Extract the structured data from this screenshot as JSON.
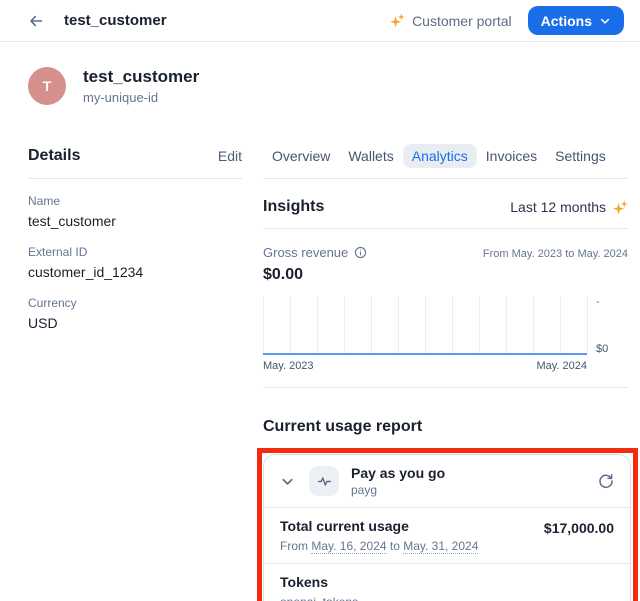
{
  "header": {
    "title": "test_customer",
    "portal_label": "Customer portal",
    "actions_label": "Actions"
  },
  "profile": {
    "initial": "T",
    "name": "test_customer",
    "subtitle": "my-unique-id"
  },
  "details": {
    "heading": "Details",
    "edit_label": "Edit",
    "fields": [
      {
        "label": "Name",
        "value": "test_customer"
      },
      {
        "label": "External ID",
        "value": "customer_id_1234"
      },
      {
        "label": "Currency",
        "value": "USD"
      }
    ]
  },
  "tabs": [
    {
      "label": "Overview",
      "active": false
    },
    {
      "label": "Wallets",
      "active": false
    },
    {
      "label": "Analytics",
      "active": true
    },
    {
      "label": "Invoices",
      "active": false
    },
    {
      "label": "Settings",
      "active": false
    }
  ],
  "insights": {
    "heading": "Insights",
    "period_label": "Last 12 months"
  },
  "gross_revenue": {
    "label": "Gross revenue",
    "value": "$0.00",
    "range": "From May. 2023 to May. 2024"
  },
  "chart_data": {
    "type": "line",
    "title": "Gross revenue",
    "x_axis": {
      "start": "May. 2023",
      "end": "May. 2024",
      "tick_count": 13
    },
    "y_axis": {
      "top_label": "-",
      "bottom_label": "$0",
      "min": 0
    },
    "series": [
      {
        "name": "Gross revenue",
        "values": [
          0,
          0,
          0,
          0,
          0,
          0,
          0,
          0,
          0,
          0,
          0,
          0,
          0
        ]
      }
    ],
    "grid": "vertical",
    "legend": "none"
  },
  "usage_report": {
    "heading": "Current usage report",
    "plan_name": "Pay as you go",
    "plan_code": "payg",
    "total_label": "Total current usage",
    "period_parts": {
      "prefix": "From",
      "start": "May. 16, 2024",
      "middle": "to",
      "end": "May. 31, 2024"
    },
    "total_value": "$17,000.00",
    "item_name": "Tokens",
    "item_code": "openai_tokens"
  },
  "colors": {
    "accent_blue": "#1a6eea",
    "annotation_red": "#f22b10",
    "avatar_bg": "#d5908b",
    "sparkle_orange": "#f6a224",
    "chart_line": "#5c97f2",
    "chart_grid": "#e8edf4"
  }
}
